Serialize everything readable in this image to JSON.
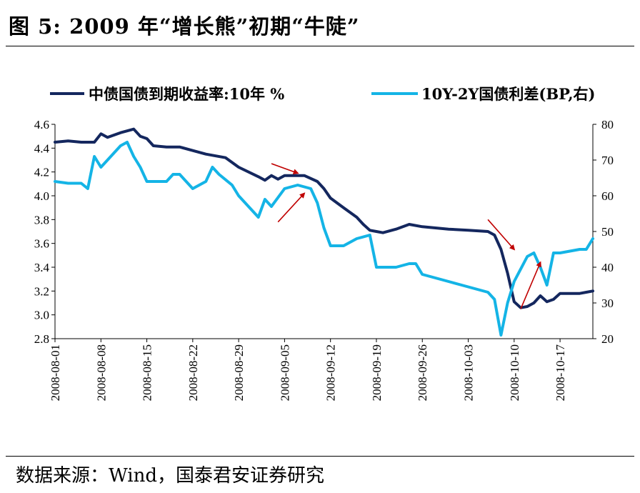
{
  "title": "图 5:  2009 年“增长熊”初期“牛陡”",
  "source": "数据来源：Wind，国泰君安证券研究",
  "chart_data": {
    "type": "line",
    "x_labels": [
      "2008-08-01",
      "2008-08-08",
      "2008-08-15",
      "2008-08-22",
      "2008-08-29",
      "2008-09-05",
      "2008-09-12",
      "2008-09-19",
      "2008-09-26",
      "2008-10-03",
      "2008-10-10",
      "2008-10-17"
    ],
    "x_start": "2008-08-01",
    "x_end": "2008-10-22",
    "y_left": {
      "min": 2.8,
      "max": 4.6,
      "ticks": [
        "2.8",
        "3.0",
        "3.2",
        "3.4",
        "3.6",
        "3.8",
        "4.0",
        "4.2",
        "4.4",
        "4.6"
      ]
    },
    "y_right": {
      "min": 20,
      "max": 80,
      "ticks": [
        "20",
        "30",
        "40",
        "50",
        "60",
        "70",
        "80"
      ]
    },
    "legend_position": "top",
    "series": [
      {
        "name": "中债国债到期收益率:10年 %",
        "axis": "left",
        "color": "#14275e",
        "points": [
          [
            "2008-08-01",
            4.45
          ],
          [
            "2008-08-03",
            4.46
          ],
          [
            "2008-08-05",
            4.45
          ],
          [
            "2008-08-07",
            4.45
          ],
          [
            "2008-08-08",
            4.52
          ],
          [
            "2008-08-09",
            4.49
          ],
          [
            "2008-08-11",
            4.53
          ],
          [
            "2008-08-13",
            4.56
          ],
          [
            "2008-08-14",
            4.5
          ],
          [
            "2008-08-15",
            4.48
          ],
          [
            "2008-08-16",
            4.42
          ],
          [
            "2008-08-18",
            4.41
          ],
          [
            "2008-08-20",
            4.41
          ],
          [
            "2008-08-22",
            4.38
          ],
          [
            "2008-08-24",
            4.35
          ],
          [
            "2008-08-27",
            4.32
          ],
          [
            "2008-08-29",
            4.24
          ],
          [
            "2008-09-01",
            4.16
          ],
          [
            "2008-09-02",
            4.13
          ],
          [
            "2008-09-03",
            4.17
          ],
          [
            "2008-09-04",
            4.14
          ],
          [
            "2008-09-05",
            4.17
          ],
          [
            "2008-09-08",
            4.17
          ],
          [
            "2008-09-10",
            4.12
          ],
          [
            "2008-09-11",
            4.06
          ],
          [
            "2008-09-12",
            3.98
          ],
          [
            "2008-09-14",
            3.9
          ],
          [
            "2008-09-16",
            3.82
          ],
          [
            "2008-09-17",
            3.76
          ],
          [
            "2008-09-18",
            3.71
          ],
          [
            "2008-09-19",
            3.7
          ],
          [
            "2008-09-20",
            3.69
          ],
          [
            "2008-09-22",
            3.72
          ],
          [
            "2008-09-24",
            3.76
          ],
          [
            "2008-09-26",
            3.74
          ],
          [
            "2008-09-28",
            3.73
          ],
          [
            "2008-09-30",
            3.72
          ],
          [
            "2008-10-03",
            3.71
          ],
          [
            "2008-10-06",
            3.7
          ],
          [
            "2008-10-07",
            3.67
          ],
          [
            "2008-10-08",
            3.55
          ],
          [
            "2008-10-09",
            3.35
          ],
          [
            "2008-10-10",
            3.11
          ],
          [
            "2008-10-11",
            3.06
          ],
          [
            "2008-10-12",
            3.07
          ],
          [
            "2008-10-13",
            3.1
          ],
          [
            "2008-10-14",
            3.16
          ],
          [
            "2008-10-15",
            3.11
          ],
          [
            "2008-10-16",
            3.13
          ],
          [
            "2008-10-17",
            3.18
          ],
          [
            "2008-10-19",
            3.18
          ],
          [
            "2008-10-20",
            3.18
          ],
          [
            "2008-10-21",
            3.19
          ],
          [
            "2008-10-22",
            3.2
          ]
        ]
      },
      {
        "name": "10Y-2Y国债利差(BP,右)",
        "axis": "right",
        "color": "#14b4e6",
        "points": [
          [
            "2008-08-01",
            64
          ],
          [
            "2008-08-03",
            63.5
          ],
          [
            "2008-08-05",
            63.5
          ],
          [
            "2008-08-06",
            62
          ],
          [
            "2008-08-07",
            71
          ],
          [
            "2008-08-08",
            68
          ],
          [
            "2008-08-09",
            70
          ],
          [
            "2008-08-11",
            74
          ],
          [
            "2008-08-12",
            75
          ],
          [
            "2008-08-13",
            71
          ],
          [
            "2008-08-14",
            68
          ],
          [
            "2008-08-15",
            64
          ],
          [
            "2008-08-18",
            64
          ],
          [
            "2008-08-19",
            66
          ],
          [
            "2008-08-20",
            66
          ],
          [
            "2008-08-22",
            62
          ],
          [
            "2008-08-24",
            64
          ],
          [
            "2008-08-25",
            68
          ],
          [
            "2008-08-26",
            66
          ],
          [
            "2008-08-28",
            63
          ],
          [
            "2008-08-29",
            60
          ],
          [
            "2008-09-01",
            54
          ],
          [
            "2008-09-02",
            59
          ],
          [
            "2008-09-03",
            57
          ],
          [
            "2008-09-05",
            62
          ],
          [
            "2008-09-07",
            63
          ],
          [
            "2008-09-09",
            62
          ],
          [
            "2008-09-10",
            58
          ],
          [
            "2008-09-11",
            51
          ],
          [
            "2008-09-12",
            46
          ],
          [
            "2008-09-14",
            46
          ],
          [
            "2008-09-16",
            48
          ],
          [
            "2008-09-18",
            49
          ],
          [
            "2008-09-19",
            40
          ],
          [
            "2008-09-20",
            40
          ],
          [
            "2008-09-22",
            40
          ],
          [
            "2008-09-24",
            41
          ],
          [
            "2008-09-25",
            41
          ],
          [
            "2008-09-26",
            38
          ],
          [
            "2008-09-28",
            37
          ],
          [
            "2008-09-30",
            36
          ],
          [
            "2008-10-02",
            35
          ],
          [
            "2008-10-04",
            34
          ],
          [
            "2008-10-06",
            33
          ],
          [
            "2008-10-07",
            31
          ],
          [
            "2008-10-08",
            21
          ],
          [
            "2008-10-09",
            30
          ],
          [
            "2008-10-10",
            36
          ],
          [
            "2008-10-12",
            43
          ],
          [
            "2008-10-13",
            44
          ],
          [
            "2008-10-14",
            40
          ],
          [
            "2008-10-15",
            35
          ],
          [
            "2008-10-16",
            44
          ],
          [
            "2008-10-17",
            44
          ],
          [
            "2008-10-20",
            45
          ],
          [
            "2008-10-21",
            45
          ],
          [
            "2008-10-22",
            48
          ]
        ]
      }
    ],
    "annotations": [
      {
        "type": "arrow",
        "color": "#c00000",
        "from": [
          "2008-09-03",
          4.27
        ],
        "to": [
          "2008-09-07",
          4.19
        ]
      },
      {
        "type": "arrow",
        "color": "#c00000",
        "from": [
          "2008-09-04",
          3.78
        ],
        "to": [
          "2008-09-08",
          4.02
        ]
      },
      {
        "type": "arrow",
        "color": "#c00000",
        "from": [
          "2008-10-06",
          3.8
        ],
        "to": [
          "2008-10-10",
          3.55
        ]
      },
      {
        "type": "arrow",
        "color": "#c00000",
        "from": [
          "2008-10-11",
          3.05
        ],
        "to": [
          "2008-10-14",
          3.44
        ]
      }
    ]
  }
}
